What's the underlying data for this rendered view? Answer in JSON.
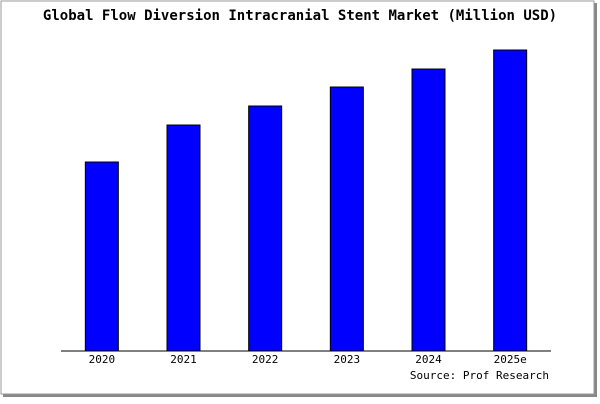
{
  "chart_data": {
    "type": "bar",
    "title": "Global Flow Diversion Intracranial Stent Market (Million USD)",
    "source": "Source: Prof Research",
    "categories": [
      "2020",
      "2021",
      "2022",
      "2023",
      "2024",
      "2025e"
    ],
    "values": [
      189,
      226,
      245,
      264,
      282,
      301
    ],
    "color": "#0000ff"
  }
}
